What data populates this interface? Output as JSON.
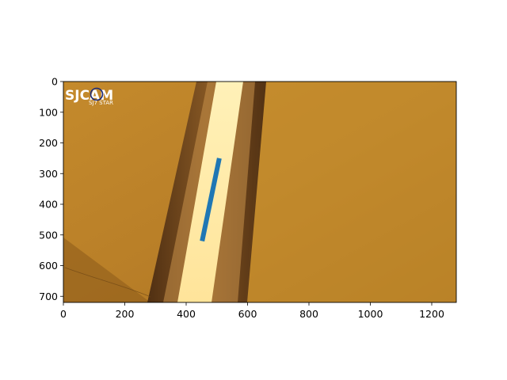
{
  "chart_data": {
    "type": "line",
    "title": "",
    "xlabel": "",
    "ylabel": "",
    "xlim": [
      0,
      1280
    ],
    "ylim": [
      720,
      0
    ],
    "y_inverted": true,
    "grid": false,
    "x_ticks": [
      0,
      200,
      400,
      600,
      800,
      1000,
      1200
    ],
    "y_ticks": [
      0,
      100,
      200,
      300,
      400,
      500,
      600,
      700
    ],
    "x_tick_labels": [
      "0",
      "200",
      "400",
      "600",
      "800",
      "1000",
      "1200"
    ],
    "y_tick_labels": [
      "0",
      "100",
      "200",
      "300",
      "400",
      "500",
      "600",
      "700"
    ],
    "background": "camera photo of an amber-lit floor with a bright vertical light stripe",
    "series": [
      {
        "color": "#1f77b4",
        "x": [
          452,
          508
        ],
        "y": [
          520,
          250
        ]
      }
    ]
  },
  "watermark": {
    "brand": "SJCAM",
    "model": "SJ7 STAR"
  }
}
